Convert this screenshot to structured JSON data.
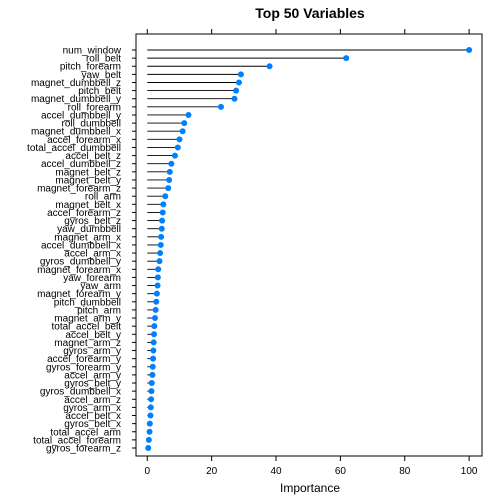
{
  "chart_data": {
    "type": "dotplot",
    "title": "Top 50 Variables",
    "xlabel": "Importance",
    "ylabel": "",
    "xlim": [
      -3.5,
      104
    ],
    "x_ticks": [
      0,
      20,
      40,
      60,
      80,
      100
    ],
    "grid": false,
    "legend": "none",
    "colors": {
      "point": "#0080ff",
      "stem": "#000000",
      "frame": "#000000"
    },
    "categories": [
      "num_window",
      "roll_belt",
      "pitch_forearm",
      "yaw_belt",
      "magnet_dumbbell_z",
      "pitch_belt",
      "magnet_dumbbell_y",
      "roll_forearm",
      "accel_dumbbell_y",
      "roll_dumbbell",
      "magnet_dumbbell_x",
      "accel_forearm_x",
      "total_accel_dumbbell",
      "accel_belt_z",
      "accel_dumbbell_z",
      "magnet_belt_z",
      "magnet_belt_y",
      "magnet_forearm_z",
      "roll_arm",
      "magnet_belt_x",
      "accel_forearm_z",
      "gyros_belt_z",
      "yaw_dumbbell",
      "magnet_arm_x",
      "accel_dumbbell_x",
      "accel_arm_x",
      "gyros_dumbbell_y",
      "magnet_forearm_x",
      "yaw_forearm",
      "yaw_arm",
      "magnet_forearm_y",
      "pitch_dumbbell",
      "pitch_arm",
      "magnet_arm_y",
      "total_accel_belt",
      "accel_belt_y",
      "magnet_arm_z",
      "gyros_arm_y",
      "accel_forearm_y",
      "gyros_forearm_y",
      "accel_arm_y",
      "gyros_belt_y",
      "gyros_dumbbell_x",
      "accel_arm_z",
      "gyros_arm_x",
      "accel_belt_x",
      "gyros_belt_x",
      "total_accel_arm",
      "total_accel_forearm",
      "gyros_forearm_z"
    ],
    "values": [
      100,
      61.8,
      38.0,
      29.1,
      28.5,
      27.6,
      27.1,
      22.9,
      12.8,
      11.5,
      11.0,
      10.0,
      9.5,
      8.6,
      7.5,
      7.0,
      6.8,
      6.5,
      5.6,
      5.0,
      4.8,
      4.6,
      4.5,
      4.3,
      4.2,
      4.0,
      3.8,
      3.4,
      3.3,
      3.2,
      3.0,
      2.8,
      2.6,
      2.4,
      2.2,
      2.1,
      2.0,
      1.9,
      1.8,
      1.7,
      1.6,
      1.4,
      1.3,
      1.2,
      1.1,
      1.0,
      0.8,
      0.7,
      0.5,
      0.3
    ]
  }
}
